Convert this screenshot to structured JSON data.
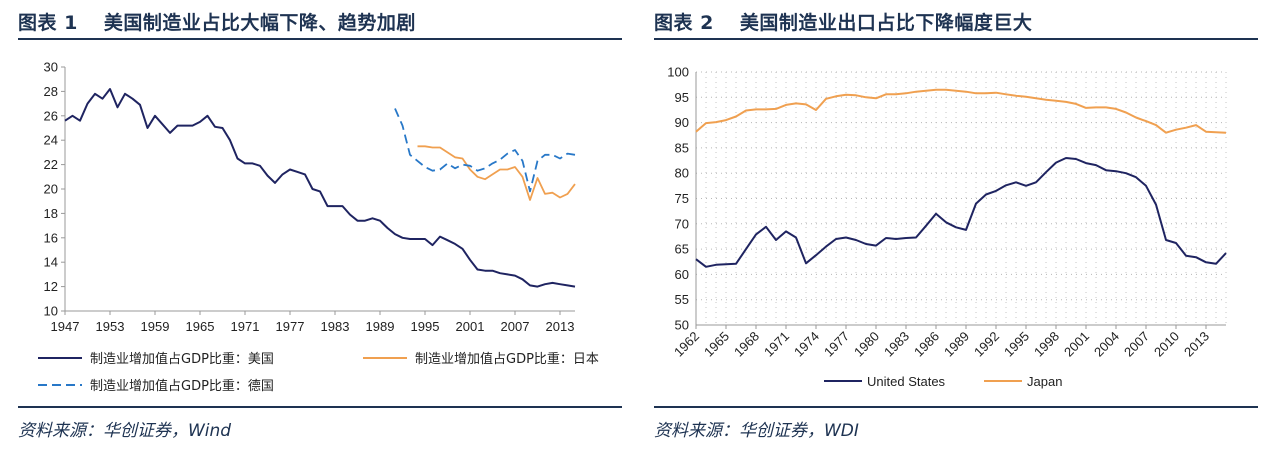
{
  "figures": [
    {
      "number": "图表 1",
      "title": "美国制造业占比大幅下降、趋势加剧",
      "source": "资料来源：华创证券，Wind"
    },
    {
      "number": "图表 2",
      "title": "美国制造业出口占比下降幅度巨大",
      "source": "资料来源：华创证券，WDI"
    }
  ],
  "chart_data": [
    {
      "type": "line",
      "ylim": [
        10,
        30
      ],
      "yticks": [
        10,
        12,
        14,
        16,
        18,
        20,
        22,
        24,
        26,
        28,
        30
      ],
      "xlim": [
        1947,
        2015
      ],
      "xticks": [
        1947,
        1953,
        1959,
        1965,
        1971,
        1977,
        1983,
        1989,
        1995,
        2001,
        2007,
        2013
      ],
      "grid": "none",
      "legend_placement": "bottom",
      "series": [
        {
          "name": "制造业增加值占GDP比重：美国",
          "color": "#1f2461",
          "dash": "solid",
          "x": [
            1947,
            1948,
            1949,
            1950,
            1951,
            1952,
            1953,
            1954,
            1955,
            1956,
            1957,
            1958,
            1959,
            1960,
            1961,
            1962,
            1963,
            1964,
            1965,
            1966,
            1967,
            1968,
            1969,
            1970,
            1971,
            1972,
            1973,
            1974,
            1975,
            1976,
            1977,
            1978,
            1979,
            1980,
            1981,
            1982,
            1983,
            1984,
            1985,
            1986,
            1987,
            1988,
            1989,
            1990,
            1991,
            1992,
            1993,
            1994,
            1995,
            1996,
            1997,
            1998,
            1999,
            2000,
            2001,
            2002,
            2003,
            2004,
            2005,
            2006,
            2007,
            2008,
            2009,
            2010,
            2011,
            2012,
            2013,
            2014,
            2015
          ],
          "values": [
            25.6,
            26.0,
            25.6,
            27.0,
            27.8,
            27.4,
            28.2,
            26.7,
            27.8,
            27.4,
            26.9,
            25.0,
            26.0,
            25.3,
            24.6,
            25.2,
            25.2,
            25.2,
            25.5,
            26.0,
            25.1,
            25.0,
            24.0,
            22.5,
            22.1,
            22.1,
            21.9,
            21.1,
            20.5,
            21.2,
            21.6,
            21.4,
            21.2,
            20.0,
            19.8,
            18.6,
            18.6,
            18.6,
            17.9,
            17.4,
            17.4,
            17.6,
            17.4,
            16.8,
            16.3,
            16.0,
            15.9,
            15.9,
            15.9,
            15.4,
            16.1,
            15.8,
            15.5,
            15.1,
            14.2,
            13.4,
            13.3,
            13.3,
            13.1,
            13.0,
            12.9,
            12.6,
            12.1,
            12.0,
            12.2,
            12.3,
            12.2,
            12.1,
            12.0
          ]
        },
        {
          "name": "制造业增加值占GDP比重：日本",
          "color": "#f0a050",
          "dash": "solid",
          "x": [
            1994,
            1995,
            1996,
            1997,
            1998,
            1999,
            2000,
            2001,
            2002,
            2003,
            2004,
            2005,
            2006,
            2007,
            2008,
            2009,
            2010,
            2011,
            2012,
            2013,
            2014,
            2015
          ],
          "values": [
            23.5,
            23.5,
            23.4,
            23.4,
            23.0,
            22.6,
            22.5,
            21.6,
            21.0,
            20.8,
            21.2,
            21.6,
            21.6,
            21.8,
            21.0,
            19.1,
            20.9,
            19.6,
            19.7,
            19.3,
            19.6,
            20.4
          ]
        },
        {
          "name": "制造业增加值占GDP比重：德国",
          "color": "#2878c8",
          "dash": "dashed",
          "x": [
            1991,
            1992,
            1993,
            1994,
            1995,
            1996,
            1997,
            1998,
            1999,
            2000,
            2001,
            2002,
            2003,
            2004,
            2005,
            2006,
            2007,
            2008,
            2009,
            2010,
            2011,
            2012,
            2013,
            2014,
            2015
          ],
          "values": [
            26.6,
            25.2,
            22.8,
            22.3,
            21.8,
            21.5,
            21.6,
            22.1,
            21.7,
            22.0,
            21.9,
            21.5,
            21.7,
            22.1,
            22.4,
            22.9,
            23.2,
            22.3,
            19.8,
            22.3,
            22.8,
            22.8,
            22.5,
            22.9,
            22.8
          ]
        }
      ]
    },
    {
      "type": "line",
      "ylim": [
        50,
        100
      ],
      "yticks": [
        50,
        55,
        60,
        65,
        70,
        75,
        80,
        85,
        90,
        95,
        100
      ],
      "xlim": [
        1962,
        2015
      ],
      "xticks": [
        1962,
        1965,
        1968,
        1971,
        1974,
        1977,
        1980,
        1983,
        1986,
        1989,
        1992,
        1995,
        1998,
        2001,
        2004,
        2007,
        2010,
        2013
      ],
      "grid": "dotted",
      "legend_placement": "bottom",
      "series": [
        {
          "name": "United States",
          "color": "#1f2461",
          "x": [
            1962,
            1963,
            1964,
            1965,
            1966,
            1967,
            1968,
            1969,
            1970,
            1971,
            1972,
            1973,
            1974,
            1975,
            1976,
            1977,
            1978,
            1979,
            1980,
            1981,
            1982,
            1983,
            1984,
            1985,
            1986,
            1987,
            1988,
            1989,
            1990,
            1991,
            1992,
            1993,
            1994,
            1995,
            1996,
            1997,
            1998,
            1999,
            2000,
            2001,
            2002,
            2003,
            2004,
            2005,
            2006,
            2007,
            2008,
            2009,
            2010,
            2011,
            2012,
            2013,
            2014,
            2015
          ],
          "values": [
            63.0,
            61.5,
            61.9,
            62.0,
            62.1,
            65.0,
            67.9,
            69.4,
            66.8,
            68.5,
            67.3,
            62.2,
            63.8,
            65.5,
            67.0,
            67.3,
            66.8,
            66.0,
            65.7,
            67.2,
            67.0,
            67.2,
            67.3,
            69.6,
            72.0,
            70.3,
            69.3,
            68.8,
            74.0,
            75.8,
            76.5,
            77.6,
            78.2,
            77.5,
            78.2,
            80.2,
            82.1,
            83.0,
            82.8,
            82.0,
            81.6,
            80.6,
            80.4,
            80.0,
            79.2,
            77.5,
            73.8,
            66.8,
            66.2,
            63.7,
            63.4,
            62.4,
            62.1,
            64.2
          ]
        },
        {
          "name": "Japan",
          "color": "#f0a050",
          "x": [
            1962,
            1963,
            1964,
            1965,
            1966,
            1967,
            1968,
            1969,
            1970,
            1971,
            1972,
            1973,
            1974,
            1975,
            1976,
            1977,
            1978,
            1979,
            1980,
            1981,
            1982,
            1983,
            1984,
            1985,
            1986,
            1987,
            1988,
            1989,
            1990,
            1991,
            1992,
            1993,
            1994,
            1995,
            1996,
            1997,
            1998,
            1999,
            2000,
            2001,
            2002,
            2003,
            2004,
            2005,
            2006,
            2007,
            2008,
            2009,
            2010,
            2011,
            2012,
            2013,
            2014,
            2015
          ],
          "values": [
            88.2,
            89.9,
            90.1,
            90.5,
            91.2,
            92.4,
            92.6,
            92.6,
            92.7,
            93.5,
            93.8,
            93.6,
            92.5,
            94.7,
            95.2,
            95.5,
            95.4,
            95.0,
            94.8,
            95.6,
            95.6,
            95.8,
            96.1,
            96.3,
            96.5,
            96.5,
            96.3,
            96.1,
            95.8,
            95.8,
            95.9,
            95.6,
            95.3,
            95.1,
            94.8,
            94.5,
            94.3,
            94.1,
            93.7,
            92.9,
            93.0,
            93.0,
            92.7,
            92.0,
            91.0,
            90.3,
            89.5,
            88.0,
            88.6,
            89.0,
            89.5,
            88.2,
            88.1,
            88.0
          ]
        }
      ]
    }
  ]
}
